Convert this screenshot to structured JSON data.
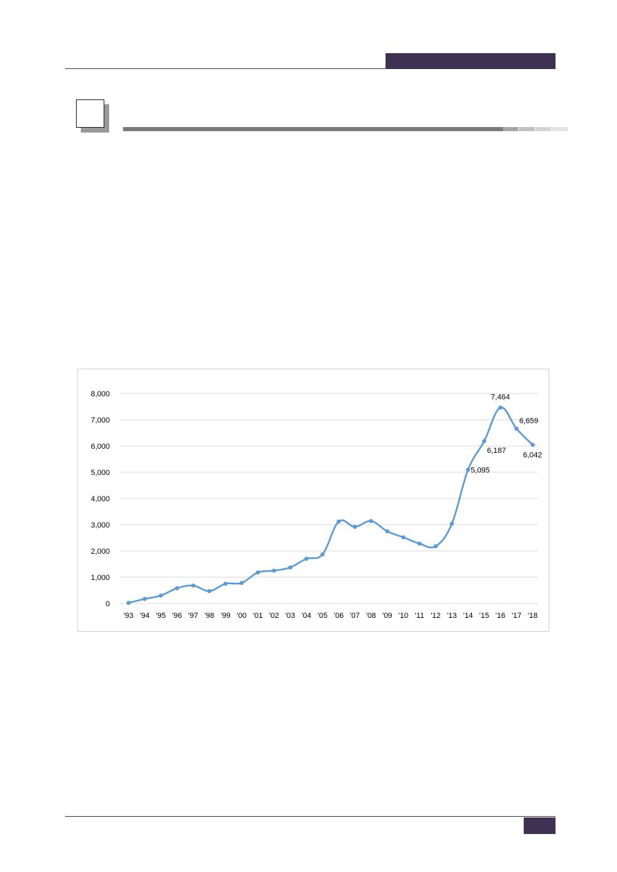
{
  "colors": {
    "accent": "#3f3151",
    "line": "#5b9bd5",
    "grid": "#d9d9d9"
  },
  "chart_data": {
    "type": "line",
    "title": "",
    "xlabel": "",
    "ylabel": "",
    "ylim": [
      0,
      8000
    ],
    "yticks": [
      0,
      1000,
      2000,
      3000,
      4000,
      5000,
      6000,
      7000,
      8000
    ],
    "ytick_labels": [
      "0",
      "1,000",
      "2,000",
      "3,000",
      "4,000",
      "5,000",
      "6,000",
      "7,000",
      "8,000"
    ],
    "grid": true,
    "legend": "none",
    "categories": [
      "'93",
      "'94",
      "'95",
      "'96",
      "'97",
      "'98",
      "'99",
      "'00",
      "'01",
      "'02",
      "'03",
      "'04",
      "'05",
      "'06",
      "'07",
      "'08",
      "'09",
      "'10",
      "'11",
      "'12",
      "'13",
      "'14",
      "'15",
      "'16",
      "'17",
      "'18"
    ],
    "series": [
      {
        "values": [
          20,
          170,
          300,
          580,
          680,
          470,
          750,
          780,
          1180,
          1250,
          1370,
          1700,
          1870,
          3120,
          2920,
          3140,
          2750,
          2520,
          2280,
          2180,
          3040,
          5095,
          6187,
          7464,
          6659,
          6042
        ]
      }
    ],
    "data_labels": [
      {
        "index": 21,
        "text": "5,095"
      },
      {
        "index": 22,
        "text": "6,187"
      },
      {
        "index": 23,
        "text": "7,464"
      },
      {
        "index": 24,
        "text": "6,659"
      },
      {
        "index": 25,
        "text": "6,042"
      }
    ]
  }
}
